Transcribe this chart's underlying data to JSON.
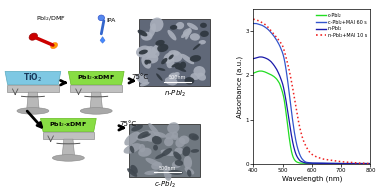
{
  "xlabel": "Wavelength (nm)",
  "ylabel": "Absorbance (a.u.)",
  "xlim": [
    400,
    800
  ],
  "ylim": [
    0,
    3.5
  ],
  "yticks": [
    0,
    1,
    2,
    3
  ],
  "xticks": [
    400,
    500,
    600,
    700,
    800
  ],
  "legend_labels": [
    "c-PbI₂",
    "c-PbI₂+MAI 60 s",
    "n-PbI₂",
    "n-PbI₂+MAI 10 s"
  ],
  "legend_colors": [
    "#22dd22",
    "#3355cc",
    "#1a1aaa",
    "#ee2222"
  ],
  "legend_linestyles": [
    "-",
    "-",
    "-",
    ":"
  ],
  "c_pbi2_x": [
    400,
    410,
    420,
    430,
    440,
    450,
    460,
    470,
    480,
    490,
    500,
    505,
    510,
    515,
    520,
    525,
    530,
    535,
    540,
    545,
    550,
    560,
    570,
    580,
    600,
    650,
    700,
    750,
    800
  ],
  "c_pbi2_y": [
    2.05,
    2.08,
    2.1,
    2.1,
    2.08,
    2.05,
    2.02,
    1.98,
    1.92,
    1.82,
    1.62,
    1.48,
    1.25,
    1.0,
    0.72,
    0.48,
    0.28,
    0.16,
    0.09,
    0.05,
    0.03,
    0.01,
    0.01,
    0.0,
    0.0,
    0.0,
    0.0,
    0.0,
    0.0
  ],
  "c_pbi2_mai_x": [
    400,
    410,
    420,
    430,
    440,
    450,
    460,
    470,
    480,
    490,
    500,
    505,
    510,
    515,
    520,
    525,
    530,
    535,
    540,
    545,
    550,
    555,
    560,
    565,
    570,
    575,
    580,
    600,
    650,
    700,
    750,
    800
  ],
  "c_pbi2_mai_y": [
    3.18,
    3.18,
    3.16,
    3.14,
    3.1,
    3.05,
    2.98,
    2.9,
    2.8,
    2.68,
    2.52,
    2.4,
    2.22,
    2.0,
    1.75,
    1.48,
    1.2,
    0.95,
    0.72,
    0.53,
    0.38,
    0.27,
    0.18,
    0.12,
    0.08,
    0.05,
    0.03,
    0.01,
    0.01,
    0.0,
    0.0,
    0.0
  ],
  "n_pbi2_x": [
    400,
    410,
    420,
    430,
    440,
    450,
    460,
    470,
    480,
    490,
    500,
    505,
    510,
    515,
    520,
    525,
    530,
    535,
    540,
    545,
    550,
    555,
    560,
    570,
    580,
    600,
    650,
    700,
    750,
    800
  ],
  "n_pbi2_y": [
    2.38,
    2.4,
    2.42,
    2.42,
    2.4,
    2.37,
    2.32,
    2.24,
    2.14,
    2.0,
    1.82,
    1.68,
    1.5,
    1.3,
    1.08,
    0.86,
    0.65,
    0.47,
    0.33,
    0.22,
    0.15,
    0.1,
    0.06,
    0.03,
    0.01,
    0.01,
    0.0,
    0.0,
    0.0,
    0.0
  ],
  "n_pbi2_mai_x": [
    400,
    410,
    420,
    430,
    440,
    450,
    460,
    470,
    480,
    490,
    500,
    505,
    510,
    515,
    520,
    525,
    530,
    535,
    540,
    545,
    550,
    555,
    560,
    565,
    570,
    575,
    580,
    585,
    590,
    595,
    600,
    610,
    620,
    630,
    640,
    650,
    660,
    670,
    680,
    690,
    700,
    710,
    720,
    730,
    740,
    750,
    760,
    770,
    780,
    790,
    800
  ],
  "n_pbi2_mai_y": [
    3.28,
    3.26,
    3.24,
    3.2,
    3.16,
    3.1,
    3.02,
    2.94,
    2.86,
    2.78,
    2.68,
    2.58,
    2.46,
    2.33,
    2.2,
    2.05,
    1.88,
    1.7,
    1.5,
    1.3,
    1.1,
    0.93,
    0.78,
    0.65,
    0.54,
    0.46,
    0.39,
    0.33,
    0.28,
    0.24,
    0.21,
    0.17,
    0.14,
    0.12,
    0.1,
    0.09,
    0.08,
    0.07,
    0.06,
    0.05,
    0.04,
    0.04,
    0.03,
    0.03,
    0.02,
    0.02,
    0.01,
    0.01,
    0.01,
    0.0,
    0.0
  ],
  "tio2_color": "#7ec8e3",
  "tio2_edge": "#5aaabf",
  "green_color": "#88dd44",
  "green_edge": "#66bb22",
  "gray_color": "#c0c0c0",
  "gray_edge": "#909090",
  "sem_bg_top": "#606878",
  "sem_bg_bot": "#707880"
}
